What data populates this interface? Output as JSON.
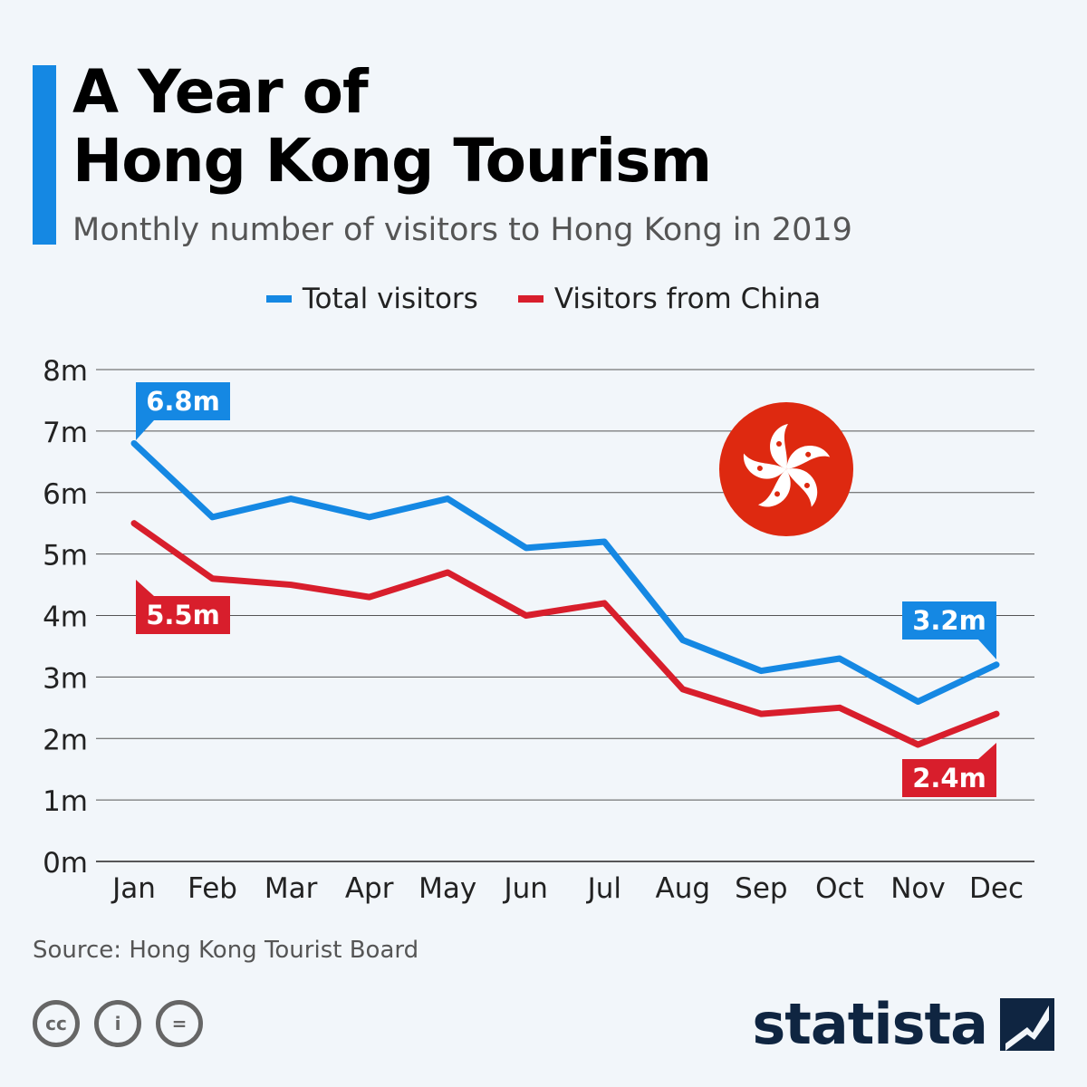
{
  "header": {
    "title_line1": "A Year of",
    "title_line2": "Hong Kong Tourism",
    "subtitle": "Monthly number of visitors to Hong Kong in 2019"
  },
  "footer": {
    "source": "Source: Hong Kong Tourist Board",
    "cc_icons": [
      "cc-icon",
      "attribution-icon",
      "no-derivatives-icon"
    ],
    "cc_labels": [
      "cc",
      "i",
      "="
    ],
    "brand": "statista"
  },
  "chart_data": {
    "type": "line",
    "categories": [
      "Jan",
      "Feb",
      "Mar",
      "Apr",
      "May",
      "Jun",
      "Jul",
      "Aug",
      "Sep",
      "Oct",
      "Nov",
      "Dec"
    ],
    "y_ticks": [
      "0m",
      "1m",
      "2m",
      "3m",
      "4m",
      "5m",
      "6m",
      "7m",
      "8m"
    ],
    "ylim": [
      0,
      8
    ],
    "grid": true,
    "legend_position": "top",
    "series": [
      {
        "name": "Total visitors",
        "color": "#1588e3",
        "values": [
          6.8,
          5.6,
          5.9,
          5.6,
          5.9,
          5.1,
          5.2,
          3.6,
          3.1,
          3.3,
          2.6,
          3.2
        ]
      },
      {
        "name": "Visitors from China",
        "color": "#d81e2c",
        "values": [
          5.5,
          4.6,
          4.5,
          4.3,
          4.7,
          4.0,
          4.2,
          2.8,
          2.4,
          2.5,
          1.9,
          2.4
        ]
      }
    ],
    "annotations": [
      {
        "series": 0,
        "index": 0,
        "text": "6.8m"
      },
      {
        "series": 1,
        "index": 0,
        "text": "5.5m"
      },
      {
        "series": 0,
        "index": 11,
        "text": "3.2m"
      },
      {
        "series": 1,
        "index": 11,
        "text": "2.4m"
      }
    ],
    "flag_icon": "hong-kong-flag-icon",
    "flag_color": "#de2910"
  }
}
